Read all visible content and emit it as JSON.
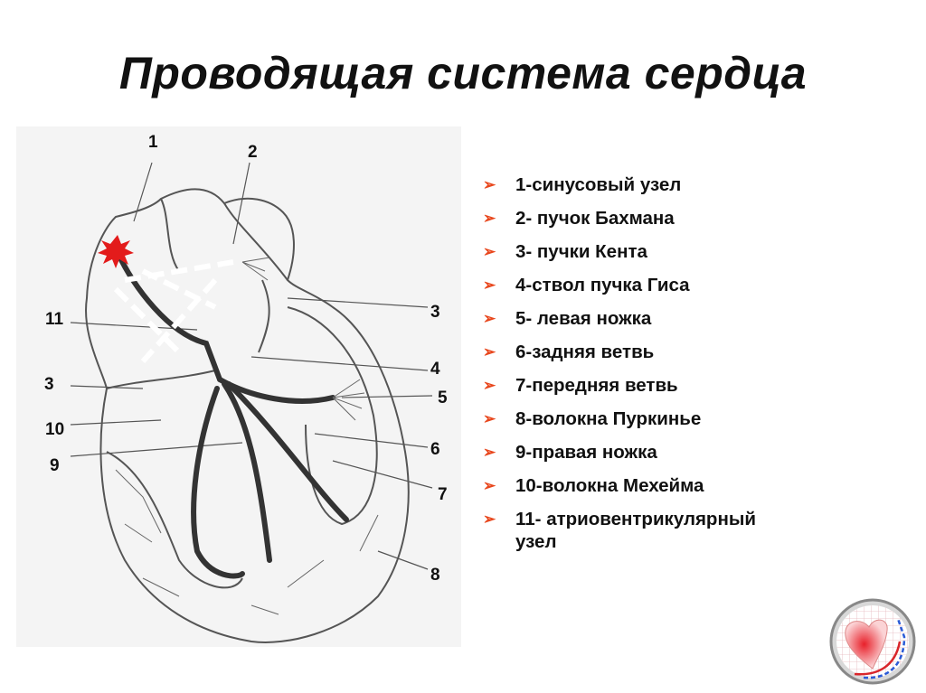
{
  "title": "Проводящая система сердца",
  "figure": {
    "labels": [
      "1",
      "2",
      "11",
      "3",
      "10",
      "9",
      "3",
      "4",
      "5",
      "6",
      "7",
      "8"
    ]
  },
  "legend": {
    "bullet_color": "#e8461c",
    "items": [
      {
        "text": "1-синусовый узел"
      },
      {
        "text": "2- пучок Бахмана"
      },
      {
        "text": "3- пучки Кента"
      },
      {
        "text": "4-ствол пучка Гиса"
      },
      {
        "text": "5- левая ножка"
      },
      {
        "text": "6-задняя ветвь"
      },
      {
        "text": "7-передняя ветвь"
      },
      {
        "text": "8-волокна Пуркинье"
      },
      {
        "text": "9-правая ножка"
      },
      {
        "text": "10-волокна Мехейма"
      },
      {
        "text": "11- атриовентрикулярный",
        "continuation": "узел"
      }
    ]
  },
  "logo": {
    "icon": "heart-cardiogram-logo"
  }
}
